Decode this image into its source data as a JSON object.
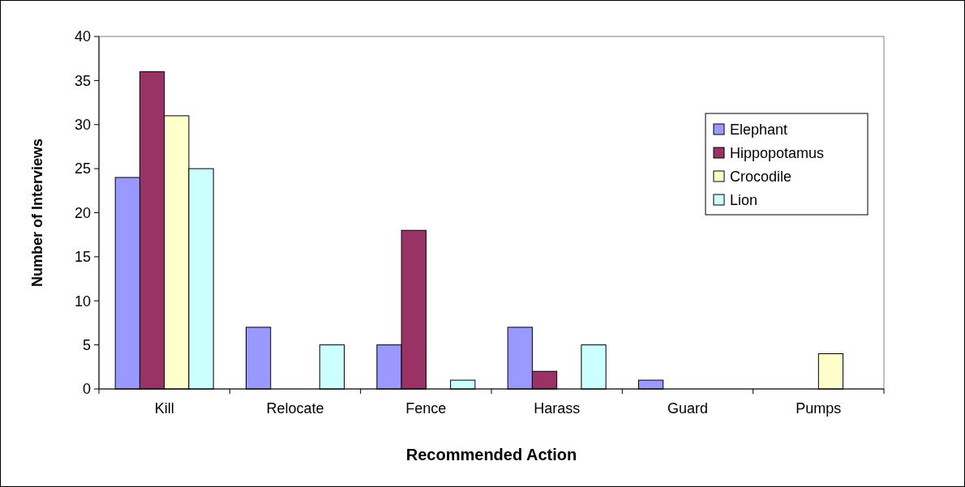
{
  "chart_data": {
    "type": "bar",
    "xlabel": "Recommended Action",
    "ylabel": "Number of Interviews",
    "categories": [
      "Kill",
      "Relocate",
      "Fence",
      "Harass",
      "Guard",
      "Pumps"
    ],
    "series": [
      {
        "name": "Elephant",
        "color": "#9999ff",
        "values": [
          24,
          7,
          5,
          7,
          1,
          0
        ]
      },
      {
        "name": "Hippopotamus",
        "color": "#993366",
        "values": [
          36,
          0,
          18,
          2,
          0,
          0
        ]
      },
      {
        "name": "Crocodile",
        "color": "#ffffcc",
        "values": [
          31,
          0,
          0,
          0,
          0,
          4
        ]
      },
      {
        "name": "Lion",
        "color": "#ccffff",
        "values": [
          25,
          5,
          1,
          5,
          0,
          0
        ]
      }
    ],
    "ylim": [
      0,
      40
    ],
    "yticks": [
      0,
      5,
      10,
      15,
      20,
      25,
      30,
      35,
      40
    ],
    "legend": "top right",
    "grid": false
  }
}
